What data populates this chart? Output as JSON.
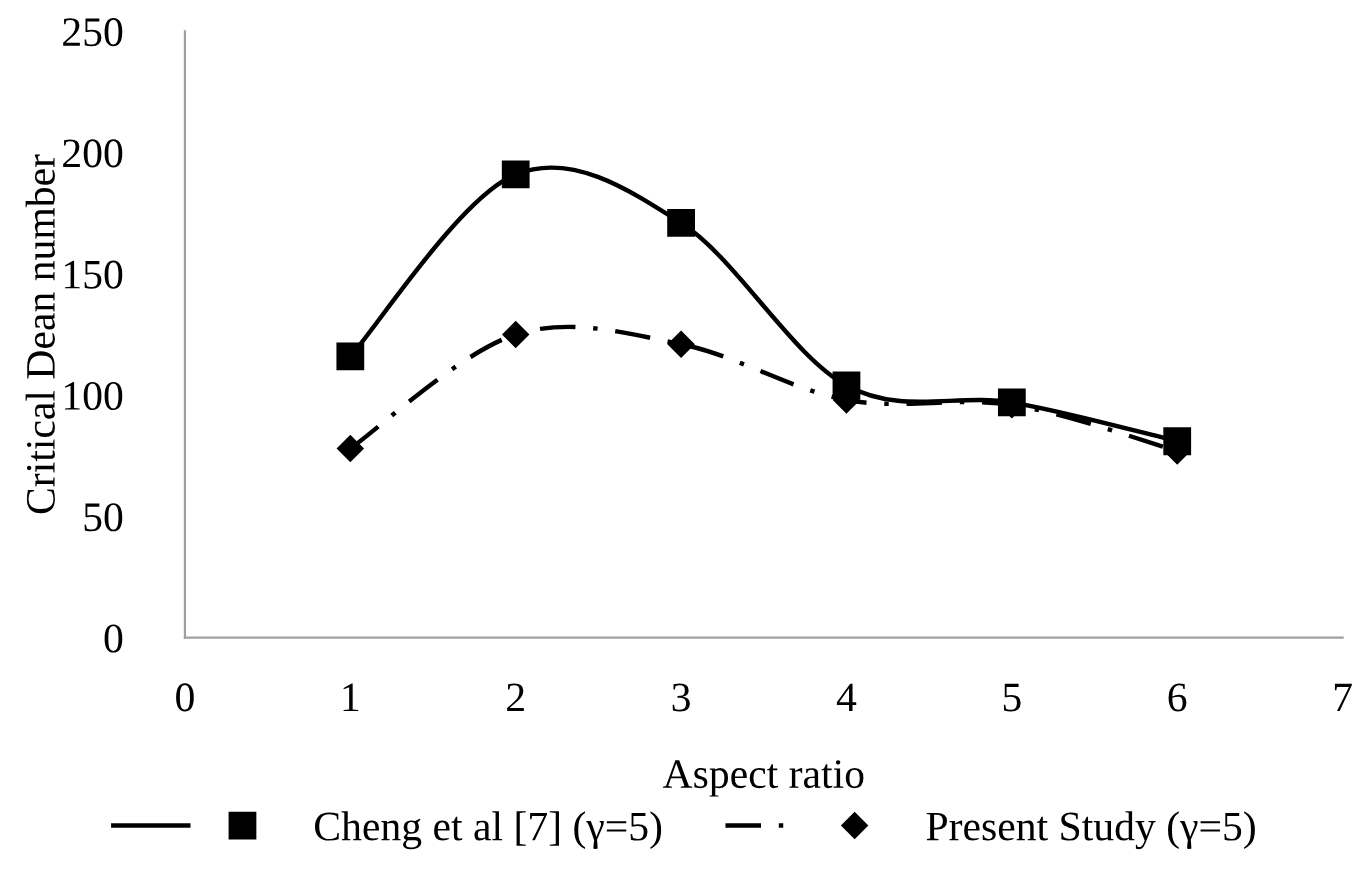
{
  "chart_data": {
    "type": "line",
    "xlabel": "Aspect ratio",
    "ylabel": "Critical Dean number",
    "x": [
      1,
      2,
      3,
      4,
      5,
      6
    ],
    "series": [
      {
        "name": "Cheng et al [7] (γ=5)",
        "color": "#000000",
        "values": [
          116,
          191,
          171,
          104,
          97,
          81
        ],
        "marker": "square",
        "line_style": "solid"
      },
      {
        "name": "Present Study (γ=5)",
        "color": "#000000",
        "values": [
          78,
          125,
          121,
          98,
          96,
          77
        ],
        "marker": "diamond",
        "line_style": "dashdot"
      }
    ],
    "xlim": [
      0,
      7
    ],
    "xticks": [
      0,
      1,
      2,
      3,
      4,
      5,
      6,
      7
    ],
    "ylim": [
      0,
      250
    ],
    "yticks": [
      0,
      50,
      100,
      150,
      200,
      250
    ],
    "grid": false,
    "legend": "bottom"
  }
}
